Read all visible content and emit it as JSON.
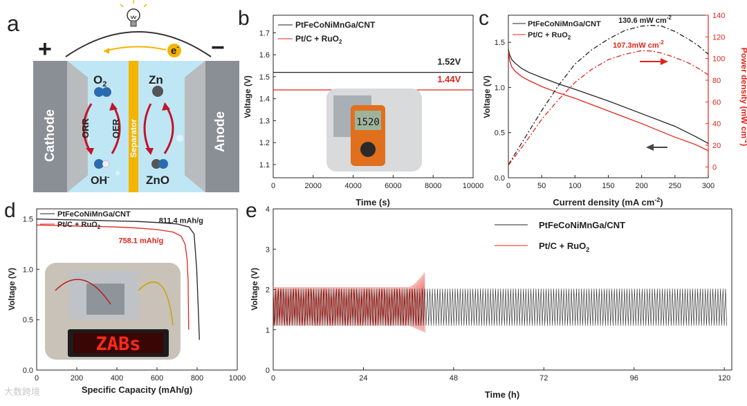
{
  "figure": {
    "colors": {
      "black": "#222222",
      "red": "#e2231a",
      "gray": "#7f7f7f",
      "separator": "#f4b400",
      "electrode": "#8a8f96",
      "electrolyte": "#bfe6f5"
    },
    "watermark": "大数跨境"
  },
  "panel_a": {
    "label": "a",
    "plus": "+",
    "minus": "−",
    "electron": "e",
    "electron_sup": "-",
    "cathode": "Cathode",
    "anode": "Anode",
    "separator": "Separator",
    "o2": "O",
    "o2_sub": "2",
    "oh": "OH",
    "oh_sup": "-",
    "zn": "Zn",
    "zno": "ZnO",
    "orr": "ORR",
    "oer": "OER",
    "icons": [
      "lightbulb-icon",
      "electron-arrow-icon",
      "o2-molecule-icon",
      "oh-molecule-icon",
      "zn-atom-icon",
      "zno-molecule-icon"
    ]
  },
  "chart_data": [
    {
      "id": "b",
      "label": "b",
      "type": "line",
      "xlabel": "Time (s)",
      "ylabel": "Voltage (V)",
      "xlim": [
        0,
        10000
      ],
      "ylim": [
        1.04,
        1.78
      ],
      "xticks": [
        0,
        2000,
        4000,
        6000,
        8000,
        10000
      ],
      "yticks": [
        1.1,
        1.2,
        1.3,
        1.4,
        1.5,
        1.6,
        1.7
      ],
      "series": [
        {
          "name": "PtFeCoNiMnGa/CNT",
          "color": "#222222",
          "x": [
            0,
            10000
          ],
          "y": [
            1.52,
            1.52
          ]
        },
        {
          "name": "Pt/C + RuO",
          "name_sub": "2",
          "color": "#e2231a",
          "x": [
            0,
            10000
          ],
          "y": [
            1.44,
            1.44
          ]
        }
      ],
      "annotations": [
        {
          "text": "1.52V",
          "x": 8800,
          "y": 1.555,
          "color": "#222222"
        },
        {
          "text": "1.44V",
          "x": 8800,
          "y": 1.475,
          "color": "#e2231a"
        }
      ],
      "inset": {
        "name": "multimeter-photo",
        "reading": "1520"
      }
    },
    {
      "id": "c",
      "label": "c",
      "type": "line",
      "xlabel": "Current density (mA cm",
      "xlabel_sup": "-2",
      "xlabel_end": ")",
      "ylabel": "Voltage (V)",
      "y2label": "Power density (mW cm",
      "y2label_sup": "-2",
      "y2label_end": ")",
      "xlim": [
        0,
        300
      ],
      "ylim": [
        0,
        1.8
      ],
      "y2lim": [
        -10,
        140
      ],
      "xticks": [
        0,
        50,
        100,
        150,
        200,
        250,
        300
      ],
      "yticks": [
        0.0,
        0.5,
        1.0,
        1.5
      ],
      "y2ticks": [
        0,
        20,
        40,
        60,
        80,
        100,
        120,
        140
      ],
      "series": [
        {
          "name": "PtFeCoNiMnGa/CNT",
          "color": "#222222",
          "axis": "left",
          "style": "solid",
          "x": [
            0,
            2,
            5,
            10,
            20,
            30,
            50,
            75,
            100,
            150,
            200,
            250,
            280,
            300
          ],
          "y": [
            1.42,
            1.36,
            1.31,
            1.27,
            1.21,
            1.17,
            1.11,
            1.04,
            0.98,
            0.85,
            0.71,
            0.57,
            0.46,
            0.38
          ]
        },
        {
          "name": "Pt/C + RuO",
          "name_sub": "2",
          "color": "#e2231a",
          "axis": "left",
          "style": "solid",
          "x": [
            0,
            2,
            5,
            10,
            20,
            30,
            50,
            75,
            100,
            150,
            200,
            250,
            280,
            300
          ],
          "y": [
            1.4,
            1.3,
            1.23,
            1.18,
            1.12,
            1.08,
            1.01,
            0.94,
            0.88,
            0.74,
            0.6,
            0.45,
            0.37,
            0.3
          ]
        },
        {
          "name": "PtFeCoNiMnGa/CNT power",
          "color": "#222222",
          "axis": "right",
          "style": "dashdot",
          "x": [
            0,
            25,
            50,
            75,
            100,
            125,
            150,
            175,
            200,
            215,
            230,
            250,
            270,
            285,
            300
          ],
          "y": [
            2,
            27,
            52,
            75,
            95,
            108,
            118,
            126,
            130,
            130.6,
            130,
            125,
            118,
            112,
            104
          ]
        },
        {
          "name": "Pt/C + RuO2 power",
          "color": "#e2231a",
          "axis": "right",
          "style": "dashdot",
          "x": [
            0,
            25,
            50,
            75,
            100,
            125,
            150,
            175,
            200,
            215,
            230,
            250,
            270,
            285,
            300
          ],
          "y": [
            1.5,
            22,
            44,
            62,
            78,
            90,
            99,
            104,
            107.3,
            107,
            105,
            101,
            96,
            91,
            85
          ]
        }
      ],
      "annotations": [
        {
          "text": "130.6 mW cm",
          "sup": "-2",
          "x": 205,
          "y2": 133,
          "color": "#222222"
        },
        {
          "text": "107.3mW cm",
          "sup": "-2",
          "x": 195,
          "y2": 110,
          "color": "#e2231a"
        }
      ]
    },
    {
      "id": "d",
      "label": "d",
      "type": "line",
      "xlabel": "Specific Capacity (mAh/g)",
      "ylabel": "Voltage (V)",
      "xlim": [
        0,
        1000
      ],
      "ylim": [
        0,
        1.6
      ],
      "xticks": [
        0,
        200,
        400,
        600,
        800,
        1000
      ],
      "yticks": [
        0.0,
        0.5,
        1.0,
        1.5
      ],
      "series": [
        {
          "name": "PtFeCoNiMnGa/CNT",
          "color": "#222222",
          "x": [
            0,
            100,
            200,
            300,
            400,
            500,
            600,
            700,
            760,
            785,
            798,
            806,
            811.4
          ],
          "y": [
            1.5,
            1.495,
            1.49,
            1.485,
            1.48,
            1.475,
            1.465,
            1.45,
            1.42,
            1.35,
            1.0,
            0.6,
            0.3
          ]
        },
        {
          "name": "Pt/C + RuO",
          "name_sub": "2",
          "color": "#e2231a",
          "x": [
            0,
            100,
            200,
            300,
            400,
            500,
            600,
            680,
            720,
            740,
            750,
            755,
            758.1
          ],
          "y": [
            1.44,
            1.435,
            1.43,
            1.425,
            1.42,
            1.41,
            1.395,
            1.37,
            1.33,
            1.25,
            1.1,
            0.9,
            0.4
          ]
        }
      ],
      "annotations": [
        {
          "text": "811.4 mAh/g",
          "x": 720,
          "y": 1.46,
          "color": "#222222"
        },
        {
          "text": "758.1 mAh/g",
          "x": 520,
          "y": 1.26,
          "color": "#e2231a"
        }
      ],
      "inset": {
        "name": "zab-led-photo",
        "sign_text": "ZABs"
      }
    },
    {
      "id": "e",
      "label": "e",
      "type": "line",
      "xlabel": "Time (h)",
      "ylabel": "Voltage (V)",
      "xlim": [
        0,
        122
      ],
      "ylim": [
        0,
        4
      ],
      "xticks": [
        0,
        24,
        48,
        72,
        96,
        120
      ],
      "yticks": [
        0,
        1,
        2,
        3,
        4
      ],
      "series": [
        {
          "name": "PtFeCoNiMnGa/CNT",
          "color": "#222222",
          "t_start": 0,
          "t_end": 121,
          "charge_v": 2.02,
          "discharge_v": 1.1,
          "cycles": 180
        },
        {
          "name": "Pt/C + RuO",
          "name_sub": "2",
          "color": "#e2231a",
          "t_start": 0,
          "t_end": 40.5,
          "charge_v": 2.06,
          "discharge_v": 1.1,
          "charge_v_end": 2.46,
          "discharge_v_end": 0.92,
          "rise_start": 36,
          "cycles": 110
        }
      ]
    }
  ]
}
